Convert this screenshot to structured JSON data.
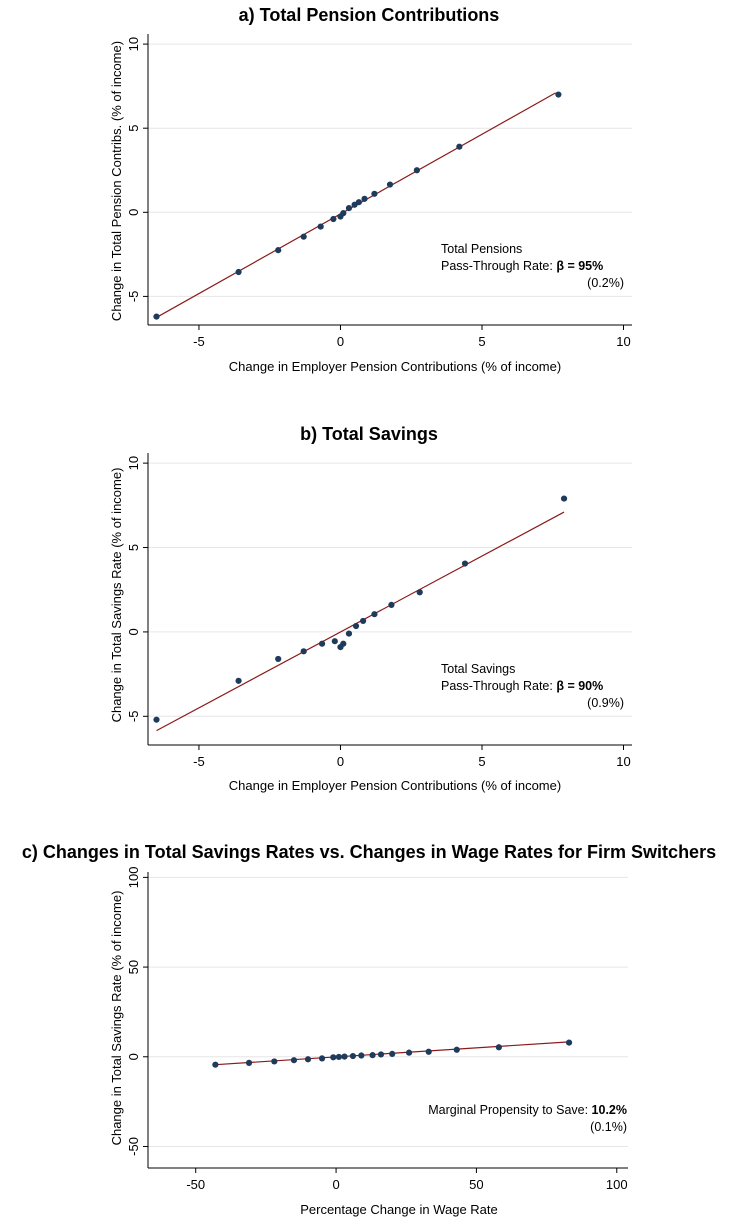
{
  "chart_data": [
    {
      "type": "scatter",
      "title": "a) Total Pension Contributions",
      "xlabel": "Change in Employer Pension Contributions (% of income)",
      "ylabel": "Change in Total Pension Contribs. (% of income)",
      "xlim": [
        -6.8,
        10.3
      ],
      "ylim": [
        -6.7,
        10.6
      ],
      "xticks": [
        -5,
        0,
        5,
        10
      ],
      "xtick_labels": [
        "-5",
        "0",
        "5",
        "10"
      ],
      "yticks": [
        -5,
        0,
        5,
        10
      ],
      "ytick_labels": [
        "-5",
        "0",
        "5",
        "10"
      ],
      "grid": "horizontal",
      "points": {
        "x": [
          -6.5,
          -3.6,
          -2.2,
          -1.3,
          -0.7,
          -0.25,
          0.0,
          0.1,
          0.3,
          0.5,
          0.65,
          0.85,
          1.2,
          1.75,
          2.7,
          4.2,
          7.7
        ],
        "y": [
          -6.2,
          -3.55,
          -2.25,
          -1.45,
          -0.85,
          -0.4,
          -0.25,
          -0.05,
          0.25,
          0.45,
          0.6,
          0.8,
          1.1,
          1.65,
          2.5,
          3.9,
          7.0
        ]
      },
      "fit": {
        "x": [
          -6.5,
          7.6
        ],
        "y": [
          -6.25,
          7.1
        ]
      },
      "annotation": {
        "line1": "Total Pensions",
        "line2_prefix": "Pass-Through Rate: ",
        "line2_bold": "β = 95%",
        "line3": "(0.2%)"
      }
    },
    {
      "type": "scatter",
      "title": "b) Total Savings",
      "xlabel": "Change in Employer Pension Contributions (% of income)",
      "ylabel": "Change in Total Savings Rate (% of income)",
      "xlim": [
        -6.8,
        10.3
      ],
      "ylim": [
        -6.7,
        10.6
      ],
      "xticks": [
        -5,
        0,
        5,
        10
      ],
      "xtick_labels": [
        "-5",
        "0",
        "5",
        "10"
      ],
      "yticks": [
        -5,
        0,
        5,
        10
      ],
      "ytick_labels": [
        "-5",
        "0",
        "5",
        "10"
      ],
      "grid": "horizontal",
      "points": {
        "x": [
          -6.5,
          -3.6,
          -2.2,
          -1.3,
          -0.65,
          -0.2,
          0.0,
          0.1,
          0.3,
          0.55,
          0.8,
          1.2,
          1.8,
          2.8,
          4.4,
          7.9
        ],
        "y": [
          -5.2,
          -2.9,
          -1.6,
          -1.15,
          -0.7,
          -0.55,
          -0.9,
          -0.7,
          -0.1,
          0.35,
          0.65,
          1.05,
          1.6,
          2.35,
          4.05,
          7.9
        ]
      },
      "fit": {
        "x": [
          -6.5,
          7.9
        ],
        "y": [
          -5.85,
          7.1
        ]
      },
      "annotation": {
        "line1": "Total Savings",
        "line2_prefix": "Pass-Through Rate: ",
        "line2_bold": "β = 90%",
        "line3": "(0.9%)"
      }
    },
    {
      "type": "scatter",
      "title": "c) Changes in Total Savings Rates vs. Changes in Wage Rates for Firm Switchers",
      "xlabel": "Percentage Change in Wage Rate",
      "ylabel": "Change in Total Savings Rate (% of income)",
      "xlim": [
        -67,
        104
      ],
      "ylim": [
        -62,
        103
      ],
      "xticks": [
        -50,
        0,
        50,
        100
      ],
      "xtick_labels": [
        "-50",
        "0",
        "50",
        "100"
      ],
      "yticks": [
        -50,
        0,
        50,
        100
      ],
      "ytick_labels": [
        "-50",
        "0",
        "50",
        "100"
      ],
      "grid": "horizontal",
      "points": {
        "x": [
          -43,
          -31,
          -22,
          -15,
          -10,
          -5,
          -1,
          1,
          3,
          6,
          9,
          13,
          16,
          20,
          26,
          33,
          43,
          58,
          83
        ],
        "y": [
          -4.4,
          -3.4,
          -2.6,
          -1.9,
          -1.4,
          -0.9,
          -0.3,
          -0.1,
          0.1,
          0.4,
          0.7,
          0.9,
          1.3,
          1.6,
          2.3,
          2.8,
          3.9,
          5.3,
          7.9
        ]
      },
      "fit": {
        "x": [
          -43,
          83
        ],
        "y": [
          -4.4,
          8.3
        ]
      },
      "annotation": {
        "line1": "",
        "line2_prefix": "Marginal Propensity to Save: ",
        "line2_bold": "10.2%",
        "line3": "(0.1%)"
      }
    }
  ],
  "colors": {
    "point": "#1f3b5c",
    "fit_line": "#8b1a1a",
    "grid": "#e6e6e6",
    "axis": "#000000"
  }
}
